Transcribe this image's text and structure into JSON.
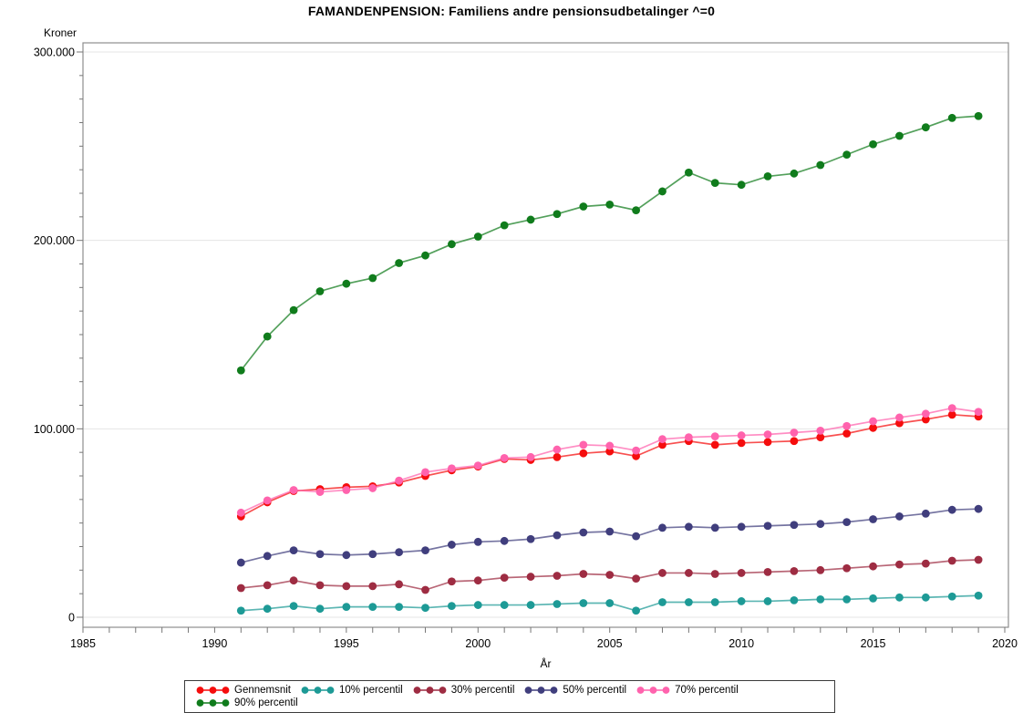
{
  "title": "FAMANDENPENSION: Familiens andre pensionsudbetalinger ^=0",
  "chart_data": {
    "type": "line",
    "title": "FAMANDENPENSION: Familiens andre pensionsudbetalinger ^=0",
    "xlabel": "År",
    "ylabel": "Kroner",
    "xlim": [
      1985,
      2020
    ],
    "ylim": [
      0,
      300000
    ],
    "grid": "horizontal-major",
    "legend_position": "bottom",
    "x_tick_labels": [
      "1985",
      "1990",
      "1995",
      "2000",
      "2005",
      "2010",
      "2015",
      "2020"
    ],
    "x_tick_values": [
      1985,
      1990,
      1995,
      2000,
      2005,
      2010,
      2015,
      2020
    ],
    "y_tick_labels": [
      "0",
      "100.000",
      "200.000",
      "300.000"
    ],
    "y_tick_values": [
      0,
      100000,
      200000,
      300000
    ],
    "y_minor_step": 12500,
    "x": [
      1991,
      1992,
      1993,
      1994,
      1995,
      1996,
      1997,
      1998,
      1999,
      2000,
      2001,
      2002,
      2003,
      2004,
      2005,
      2006,
      2007,
      2008,
      2009,
      2010,
      2011,
      2012,
      2013,
      2014,
      2015,
      2016,
      2017,
      2018,
      2019
    ],
    "series": [
      {
        "name": "Gennemsnit",
        "color": "#f50d0d",
        "values": [
          53500,
          61000,
          67000,
          68000,
          69000,
          69500,
          71500,
          75000,
          78000,
          80000,
          84000,
          83500,
          85000,
          87000,
          88000,
          85500,
          91500,
          93500,
          91500,
          92500,
          93000,
          93500,
          95500,
          97500,
          100500,
          103000,
          105000,
          107500,
          106500
        ]
      },
      {
        "name": "10% percentil",
        "color": "#1d9a96",
        "values": [
          3500,
          4500,
          6000,
          4500,
          5500,
          5500,
          5500,
          5000,
          6000,
          6500,
          6500,
          6500,
          7000,
          7500,
          7500,
          3500,
          8000,
          8000,
          8000,
          8500,
          8500,
          9000,
          9500,
          9500,
          10000,
          10500,
          10500,
          11000,
          11500
        ]
      },
      {
        "name": "30% percentil",
        "color": "#9e2c42",
        "values": [
          15500,
          17000,
          19500,
          17000,
          16500,
          16500,
          17500,
          14500,
          19000,
          19500,
          21000,
          21500,
          22000,
          23000,
          22500,
          20500,
          23500,
          23500,
          23000,
          23500,
          24000,
          24500,
          25000,
          26000,
          27000,
          28000,
          28500,
          30000,
          30500
        ]
      },
      {
        "name": "50% percentil",
        "color": "#403e7d",
        "values": [
          29000,
          32500,
          35500,
          33500,
          33000,
          33500,
          34500,
          35500,
          38500,
          40000,
          40500,
          41500,
          43500,
          45000,
          45500,
          43000,
          47500,
          48000,
          47500,
          48000,
          48500,
          49000,
          49500,
          50500,
          52000,
          53500,
          55000,
          57000,
          57500
        ]
      },
      {
        "name": "70% percentil",
        "color": "#ff63ad",
        "values": [
          55500,
          62000,
          67500,
          66500,
          67500,
          68500,
          72500,
          77000,
          79000,
          80500,
          84500,
          85000,
          89000,
          91500,
          91000,
          88500,
          94500,
          95500,
          96000,
          96500,
          97000,
          98000,
          99000,
          101500,
          104000,
          106000,
          108000,
          111000,
          109000
        ]
      },
      {
        "name": "90% percentil",
        "color": "#107c1c",
        "values": [
          131000,
          149000,
          163000,
          173000,
          177000,
          180000,
          188000,
          192000,
          198000,
          202000,
          208000,
          211000,
          214000,
          218000,
          219000,
          216000,
          226000,
          236000,
          230500,
          229500,
          234000,
          235500,
          240000,
          245500,
          251000,
          255500,
          260000,
          265000,
          266000
        ]
      }
    ],
    "draw_order": [
      0,
      1,
      2,
      3,
      4,
      5
    ],
    "frame_color": "#8e8e8e",
    "grid_color": "#e5e5e5",
    "tick_color": "#777777"
  }
}
